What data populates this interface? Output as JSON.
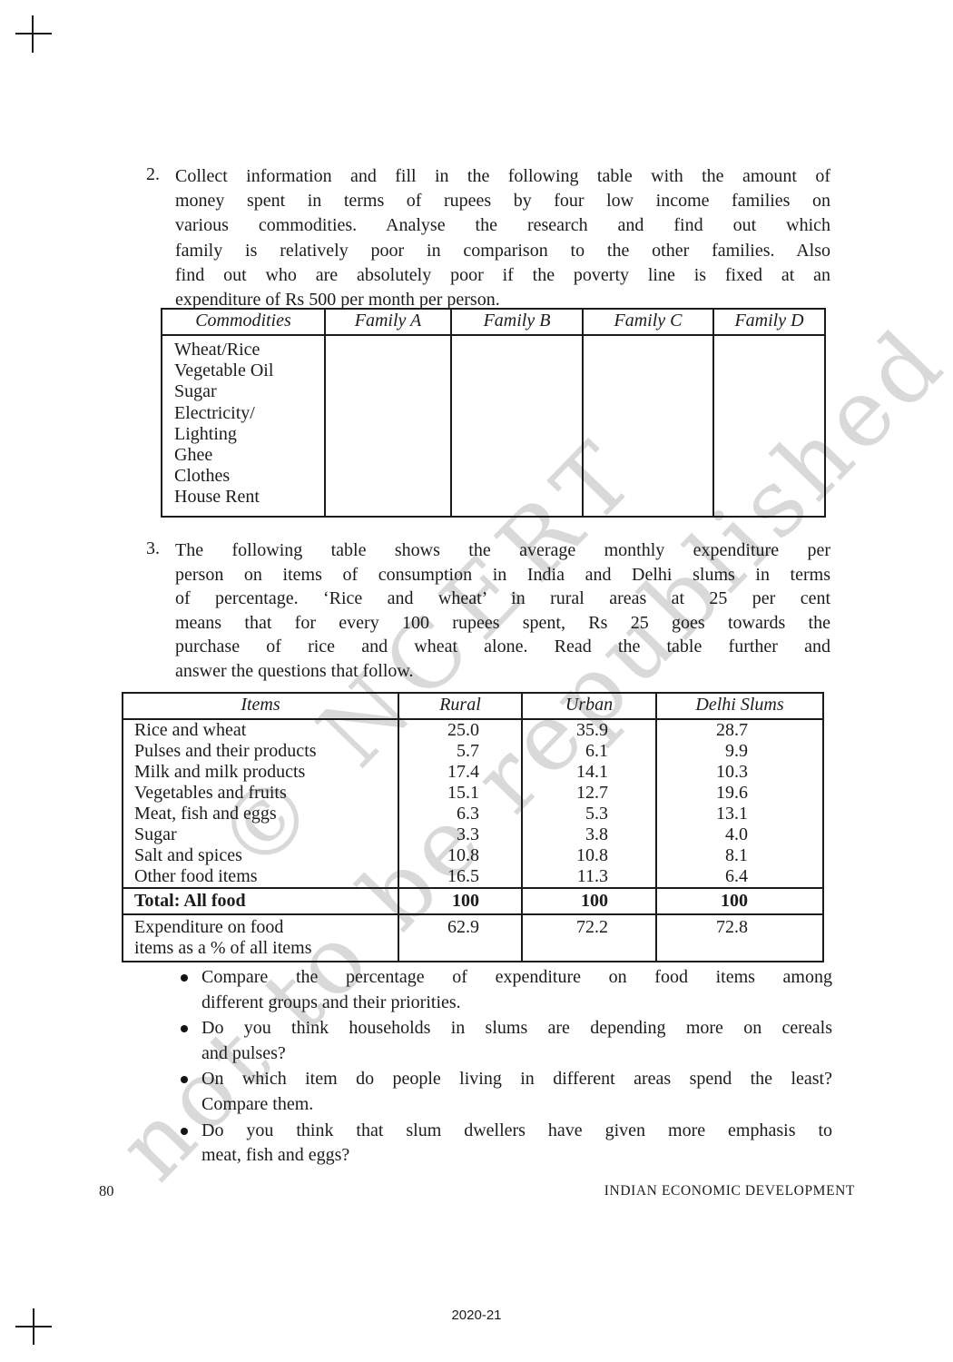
{
  "document": {
    "questions": [
      {
        "number": "2.",
        "lines": [
          "Collect information and fill in the following table with the amount of",
          "money spent in terms of rupees by four low income families on",
          "various commodities. Analyse the research and find out which",
          "family is relatively poor in comparison to the other families. Also",
          "find out who are absolutely poor if the poverty line is fixed at an",
          "expenditure of Rs 500 per month per person."
        ]
      },
      {
        "number": "3.",
        "lines": [
          "The following table shows the average monthly expenditure per",
          "person on items of consumption in India and Delhi slums in terms",
          "of percentage. ‘Rice and wheat’ in rural areas at 25 per cent",
          "means that for every 100 rupees spent, Rs 25 goes towards the",
          "purchase of rice and wheat alone. Read the table further and",
          "answer the questions that follow."
        ]
      }
    ],
    "commodities_table": {
      "headers": [
        "Commodities",
        "Family A",
        "Family B",
        "Family C",
        "Family D"
      ],
      "commodity_lines": [
        "Wheat/Rice",
        "Vegetable Oil",
        "Sugar",
        "Electricity/",
        "Lighting",
        "Ghee",
        "Clothes",
        "House Rent"
      ]
    },
    "expenditure_table": {
      "headers": [
        "Items",
        "Rural",
        "Urban",
        "Delhi Slums"
      ],
      "rows": [
        [
          "Rice and wheat",
          "25.0",
          "35.9",
          "28.7"
        ],
        [
          "Pulses and their products",
          "5.7",
          "6.1",
          "9.9"
        ],
        [
          "Milk and milk products",
          "17.4",
          "14.1",
          "10.3"
        ],
        [
          "Vegetables and fruits",
          "15.1",
          "12.7",
          "19.6"
        ],
        [
          "Meat, fish and eggs",
          "6.3",
          "5.3",
          "13.1"
        ],
        [
          "Sugar",
          "3.3",
          "3.8",
          "4.0"
        ],
        [
          "Salt and spices",
          "10.8",
          "10.8",
          "8.1"
        ],
        [
          "Other food items",
          "16.5",
          "11.3",
          "6.4"
        ]
      ],
      "total_row": [
        "Total: All food",
        "100",
        "100",
        "100"
      ],
      "summary_row": {
        "label_lines": [
          "Expenditure on food",
          "items as a % of all items"
        ],
        "values": [
          "62.9",
          "72.2",
          "72.8"
        ]
      }
    },
    "bullets": [
      [
        "Compare the percentage of expenditure on food items among",
        "different groups and their priorities."
      ],
      [
        "Do you think households in slums are depending more on cereals",
        "and pulses?"
      ],
      [
        "On which item do people living in different areas spend the least?",
        "Compare them."
      ],
      [
        "Do you think that slum dwellers have given more emphasis to",
        "meat, fish and eggs?"
      ]
    ],
    "footer": {
      "page_number": "80",
      "running_title": "INDIAN ECONOMIC DEVELOPMENT",
      "edition": "2020-21"
    },
    "watermark": {
      "line1": "© NCERT",
      "line2": "not to be republished",
      "color": "#d9d9d9"
    }
  }
}
